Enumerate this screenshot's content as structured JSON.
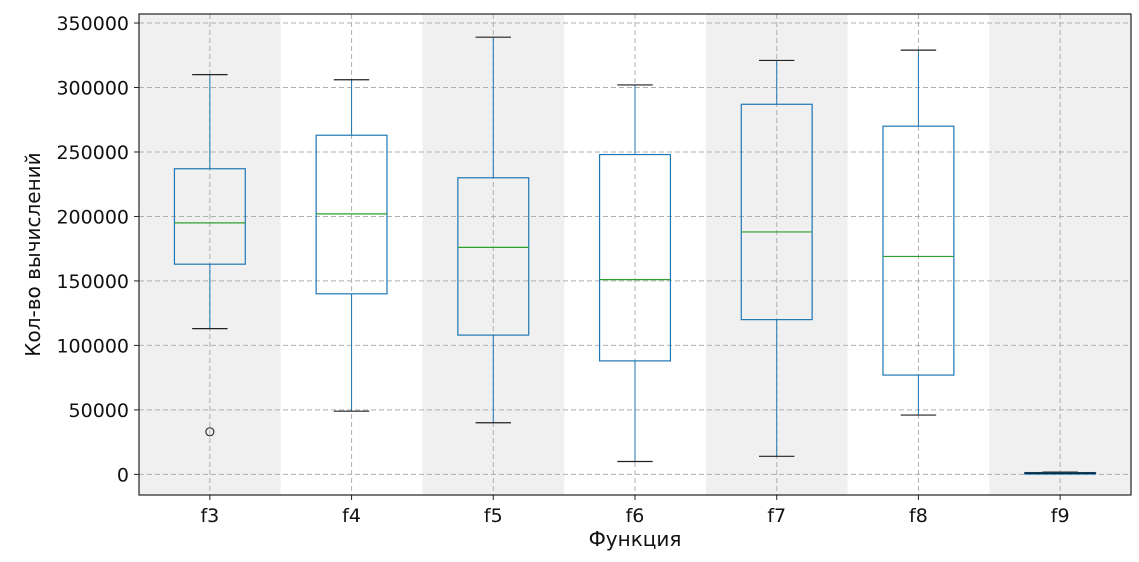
{
  "chart_data": {
    "type": "box",
    "xlabel": "Функция",
    "ylabel": "Кол-во вычислений",
    "ylim": [
      -16000,
      357000
    ],
    "yticks": [
      0,
      50000,
      100000,
      150000,
      200000,
      250000,
      300000,
      350000
    ],
    "ytick_labels": [
      "0",
      "50000",
      "100000",
      "150000",
      "200000",
      "250000",
      "300000",
      "350000"
    ],
    "grid": true,
    "shaded_bands": [
      "f3",
      "f5",
      "f7",
      "f9"
    ],
    "colors": {
      "box": "#1f77b4",
      "median": "#2ca02c",
      "band": "#f0f0f0",
      "outlier": "#333333",
      "f9_median": "#000000"
    },
    "categories": [
      "f3",
      "f4",
      "f5",
      "f6",
      "f7",
      "f8",
      "f9"
    ],
    "boxes": [
      {
        "label": "f3",
        "whisker_low": 113000,
        "q1": 163000,
        "median": 195000,
        "q3": 237000,
        "whisker_high": 310000,
        "outliers": [
          33000
        ]
      },
      {
        "label": "f4",
        "whisker_low": 49000,
        "q1": 140000,
        "median": 202000,
        "q3": 263000,
        "whisker_high": 306000,
        "outliers": []
      },
      {
        "label": "f5",
        "whisker_low": 40000,
        "q1": 108000,
        "median": 176000,
        "q3": 230000,
        "whisker_high": 339000,
        "outliers": []
      },
      {
        "label": "f6",
        "whisker_low": 10000,
        "q1": 88000,
        "median": 151000,
        "q3": 248000,
        "whisker_high": 302000,
        "outliers": []
      },
      {
        "label": "f7",
        "whisker_low": 14000,
        "q1": 120000,
        "median": 188000,
        "q3": 287000,
        "whisker_high": 321000,
        "outliers": []
      },
      {
        "label": "f8",
        "whisker_low": 46000,
        "q1": 77000,
        "median": 169000,
        "q3": 270000,
        "whisker_high": 329000,
        "outliers": []
      },
      {
        "label": "f9",
        "whisker_low": 500,
        "q1": 700,
        "median": 1000,
        "q3": 1400,
        "whisker_high": 1800,
        "outliers": []
      }
    ]
  }
}
